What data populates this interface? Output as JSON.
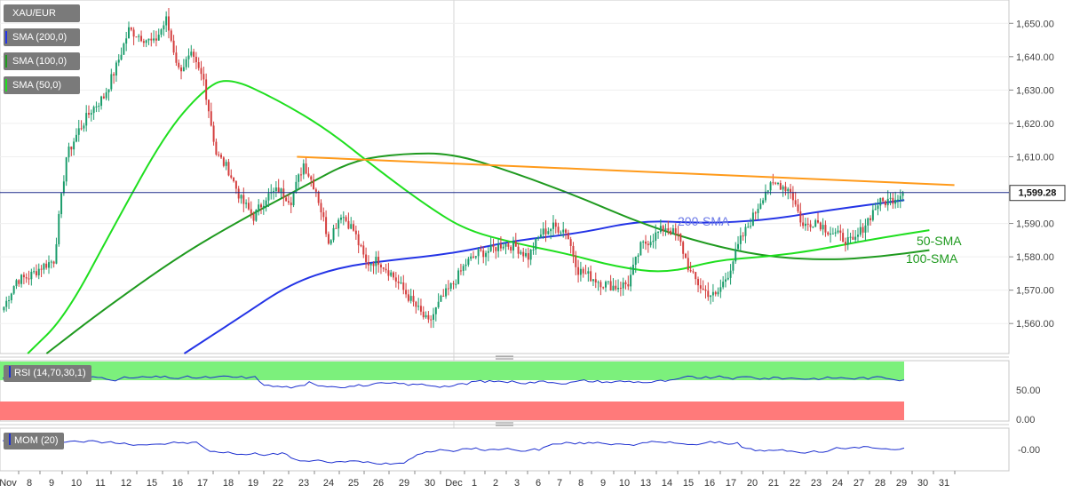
{
  "colors": {
    "candle_up": "#1a9c6b",
    "candle_down": "#d43d3d",
    "sma200": "#2434e6",
    "sma100": "#1f9a1f",
    "sma50": "#1fdf1f",
    "trendline": "#ff9a1a",
    "rsi": "#1e30d0",
    "mom": "#1e30d0",
    "rsi_overbought": "#7cf07c",
    "rsi_oversold": "#ff7a7a",
    "last_price_line": "#1b2a8a"
  },
  "legend": {
    "symbol": "XAU/EUR",
    "sma200": "SMA (200,0)",
    "sma100": "SMA (100,0)",
    "sma50": "SMA (50,0)"
  },
  "last_price": "1,599.28",
  "annotations": {
    "sma200": "200-SMA",
    "sma50": "50-SMA",
    "sma100": "100-SMA"
  },
  "rsi_panel": {
    "label": "RSI (14,70,30,1)",
    "ticks": [
      "50.00",
      "0.00"
    ]
  },
  "mom_panel": {
    "label": "MOM (20)",
    "ticks": [
      "-0.00"
    ]
  },
  "chart_data": {
    "type": "candlestick",
    "title": "XAU/EUR",
    "x_ticks": [
      "Nov",
      "8",
      "9",
      "10",
      "11",
      "12",
      "15",
      "16",
      "17",
      "18",
      "19",
      "22",
      "23",
      "24",
      "25",
      "26",
      "29",
      "30",
      "Dec",
      "1",
      "2",
      "3",
      "6",
      "7",
      "8",
      "9",
      "10",
      "13",
      "14",
      "15",
      "16",
      "17",
      "20",
      "21",
      "22",
      "23",
      "24",
      "27",
      "28",
      "29",
      "30",
      "31"
    ],
    "y_ticks": [
      "1,650.00",
      "1,640.00",
      "1,630.00",
      "1,620.00",
      "1,610.00",
      "1,600.00",
      "1,590.00",
      "1,580.00",
      "1,570.00",
      "1,560.00"
    ],
    "ylim": [
      1551,
      1657
    ],
    "close_anchors": [
      [
        0,
        1565
      ],
      [
        1,
        1573
      ],
      [
        2,
        1574
      ],
      [
        3,
        1577
      ],
      [
        4,
        1579
      ],
      [
        5,
        1610
      ],
      [
        6,
        1618
      ],
      [
        7,
        1624
      ],
      [
        8,
        1628
      ],
      [
        9,
        1637
      ],
      [
        10,
        1648
      ],
      [
        11,
        1646
      ],
      [
        12,
        1644
      ],
      [
        13,
        1651
      ],
      [
        14,
        1636
      ],
      [
        15,
        1640
      ],
      [
        16,
        1633
      ],
      [
        17,
        1611
      ],
      [
        18,
        1606
      ],
      [
        19,
        1597
      ],
      [
        20,
        1592
      ],
      [
        21,
        1598
      ],
      [
        22,
        1600
      ],
      [
        23,
        1597
      ],
      [
        24,
        1608
      ],
      [
        25,
        1600
      ],
      [
        26,
        1585
      ],
      [
        27,
        1593
      ],
      [
        28,
        1588
      ],
      [
        29,
        1578
      ],
      [
        30,
        1579
      ],
      [
        31,
        1575
      ],
      [
        32,
        1570
      ],
      [
        33,
        1565
      ],
      [
        34,
        1560
      ],
      [
        35,
        1567
      ],
      [
        36,
        1572
      ],
      [
        37,
        1578
      ],
      [
        38,
        1581
      ],
      [
        39,
        1582
      ],
      [
        40,
        1584
      ],
      [
        41,
        1583
      ],
      [
        42,
        1580
      ],
      [
        43,
        1587
      ],
      [
        44,
        1589
      ],
      [
        45,
        1588
      ],
      [
        46,
        1576
      ],
      [
        47,
        1574
      ],
      [
        48,
        1572
      ],
      [
        49,
        1571
      ],
      [
        50,
        1572
      ],
      [
        51,
        1583
      ],
      [
        52,
        1586
      ],
      [
        53,
        1589
      ],
      [
        54,
        1586
      ],
      [
        55,
        1575
      ],
      [
        56,
        1570
      ],
      [
        57,
        1568
      ],
      [
        58,
        1575
      ],
      [
        59,
        1585
      ],
      [
        60,
        1592
      ],
      [
        61,
        1600
      ],
      [
        62,
        1602
      ],
      [
        63,
        1600
      ],
      [
        64,
        1589
      ],
      [
        65,
        1591
      ],
      [
        66,
        1588
      ],
      [
        67,
        1586
      ],
      [
        68,
        1584
      ],
      [
        69,
        1590
      ],
      [
        70,
        1596
      ],
      [
        71,
        1597
      ],
      [
        72,
        1599.28
      ]
    ],
    "series": [
      {
        "name": "SMA (200,0)",
        "points": [
          [
            14.5,
            1551
          ],
          [
            19,
            1562
          ],
          [
            23,
            1572
          ],
          [
            27,
            1577
          ],
          [
            31,
            1579
          ],
          [
            36,
            1581
          ],
          [
            41,
            1585
          ],
          [
            46,
            1587
          ],
          [
            51,
            1591
          ],
          [
            56,
            1590
          ],
          [
            61,
            1591
          ],
          [
            66,
            1594
          ],
          [
            72,
            1597
          ]
        ]
      },
      {
        "name": "SMA (100,0)",
        "points": [
          [
            3.5,
            1551
          ],
          [
            8,
            1564
          ],
          [
            14,
            1580
          ],
          [
            19,
            1591
          ],
          [
            24,
            1601
          ],
          [
            28,
            1609
          ],
          [
            32,
            1611
          ],
          [
            36,
            1611
          ],
          [
            41,
            1605
          ],
          [
            46,
            1598
          ],
          [
            51,
            1590
          ],
          [
            56,
            1584
          ],
          [
            61,
            1580
          ],
          [
            66,
            1579
          ],
          [
            70,
            1580
          ],
          [
            74,
            1582
          ]
        ]
      },
      {
        "name": "SMA (50,0)",
        "points": [
          [
            2,
            1551
          ],
          [
            5,
            1562
          ],
          [
            9,
            1590
          ],
          [
            13,
            1617
          ],
          [
            16,
            1630
          ],
          [
            18,
            1634
          ],
          [
            22,
            1627
          ],
          [
            26,
            1618
          ],
          [
            30,
            1606
          ],
          [
            34,
            1595
          ],
          [
            37,
            1588
          ],
          [
            41,
            1584
          ],
          [
            45,
            1581
          ],
          [
            49,
            1577
          ],
          [
            53,
            1575
          ],
          [
            57,
            1579
          ],
          [
            61,
            1580
          ],
          [
            65,
            1582
          ],
          [
            69,
            1585
          ],
          [
            74,
            1588
          ]
        ]
      }
    ],
    "trendline": [
      [
        23.5,
        1610
      ],
      [
        76,
        1601.5
      ]
    ],
    "rsi": {
      "range": [
        0,
        100
      ],
      "overbought": 70,
      "oversold": 30
    },
    "mom": {
      "range": [
        -10,
        10
      ]
    }
  }
}
